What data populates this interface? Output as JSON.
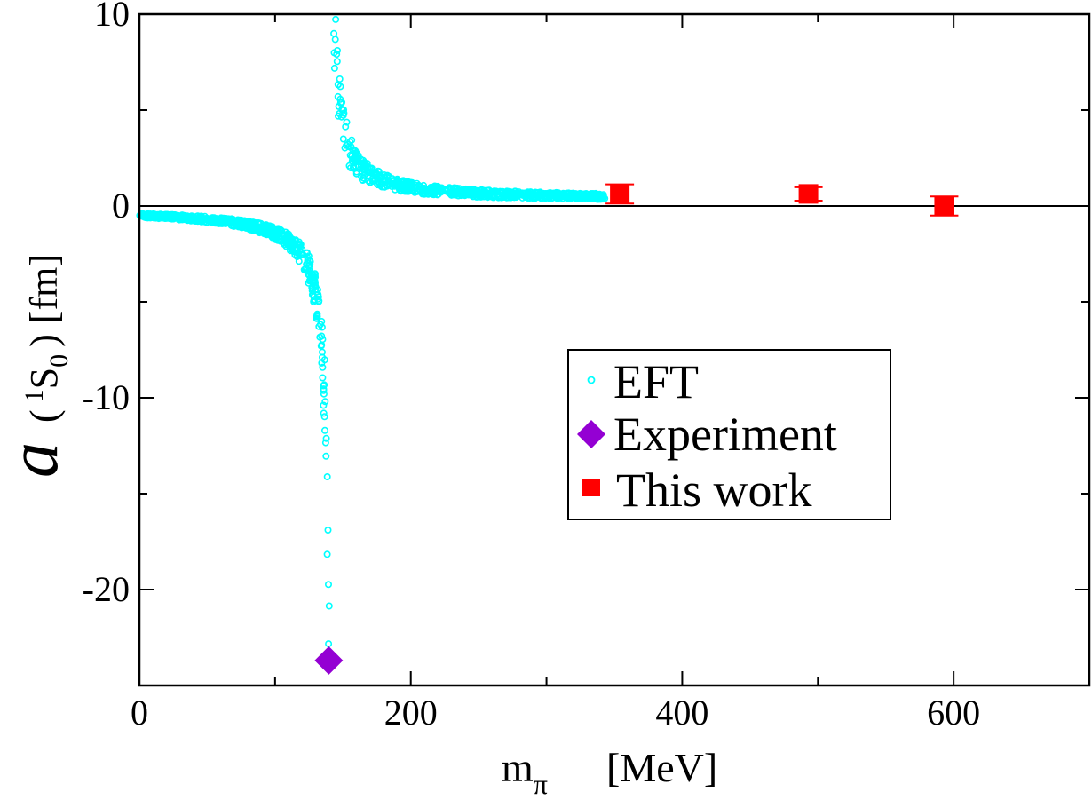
{
  "chart_data": {
    "type": "scatter",
    "xlabel": {
      "main": "m",
      "sub": "π",
      "units": "[MeV]"
    },
    "ylabel": {
      "symbol": "a",
      "open": "(",
      "sup": "1",
      "main": "S",
      "sub": "0",
      "close": ")",
      "units": "[fm]"
    },
    "xlim": [
      0,
      700
    ],
    "ylim": [
      -25,
      10
    ],
    "x_ticks": [
      0,
      200,
      400,
      600
    ],
    "x_tick_labels": [
      "0",
      "200",
      "400",
      "600"
    ],
    "x_minor_ticks": [
      100,
      300,
      500,
      700
    ],
    "y_ticks": [
      -20,
      -10,
      0,
      10
    ],
    "y_tick_labels": [
      "-20",
      "-10",
      "0",
      "10"
    ],
    "y_minor_ticks": [
      -15,
      -5,
      5
    ],
    "zero_line": true,
    "grid": false,
    "legend_position": "center-right",
    "series": [
      {
        "name": "EFT",
        "marker": "open-circle",
        "color": "#00ffff",
        "description": "dense band of EFT predictions",
        "branches": [
          {
            "x_range": [
              0,
              140
            ],
            "pole_x": 141,
            "scale": -56,
            "offset": 0.1,
            "spread_frac": 0.22
          },
          {
            "x_range": [
              143,
              343
            ],
            "pole_x": 141,
            "scale": 40,
            "offset": 0.3,
            "spread_frac": 0.3
          }
        ]
      },
      {
        "name": "Experiment",
        "marker": "diamond",
        "color": "#9400d3",
        "points": [
          {
            "x": 139.6,
            "y": -23.7
          }
        ]
      },
      {
        "name": "This work",
        "marker": "square",
        "color": "#ff0000",
        "points": [
          {
            "x": 354,
            "y": 0.63,
            "err": 0.5
          },
          {
            "x": 493,
            "y": 0.63,
            "err": 0.35
          },
          {
            "x": 593,
            "y": 0.0,
            "err": 0.5
          }
        ]
      }
    ]
  }
}
